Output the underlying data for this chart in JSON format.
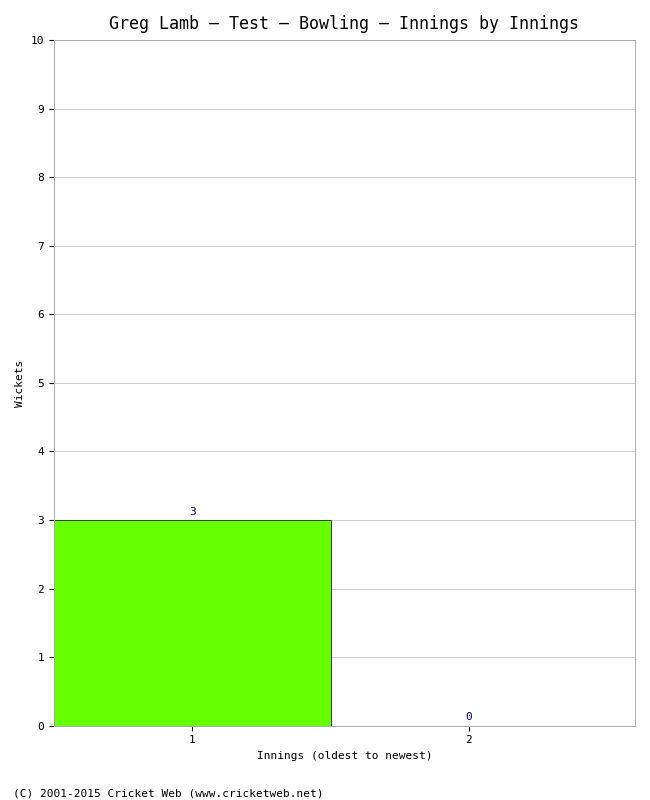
{
  "title": "Greg Lamb – Test – Bowling – Innings by Innings",
  "xlabel": "Innings (oldest to newest)",
  "ylabel": "Wickets",
  "categories": [
    1,
    2
  ],
  "values": [
    3,
    0
  ],
  "bar_color": "#66ff00",
  "bar_edge_color": "#000000",
  "ylim": [
    0,
    10
  ],
  "yticks": [
    0,
    1,
    2,
    3,
    4,
    5,
    6,
    7,
    8,
    9,
    10
  ],
  "xticks": [
    1,
    2
  ],
  "bar_width": 1.0,
  "label_color": "#000080",
  "label_fontsize": 8,
  "title_fontsize": 12,
  "axis_fontsize": 8,
  "ylabel_fontsize": 8,
  "xlabel_fontsize": 8,
  "footer": "(C) 2001-2015 Cricket Web (www.cricketweb.net)",
  "footer_fontsize": 8,
  "background_color": "#ffffff",
  "grid_color": "#cccccc",
  "font_family": "monospace"
}
